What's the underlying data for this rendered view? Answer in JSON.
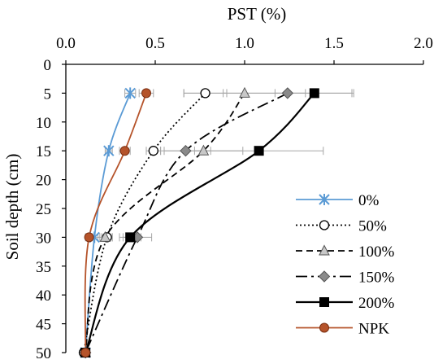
{
  "chart_data": {
    "type": "line",
    "xlabel": "PST (%)",
    "ylabel": "Soil depth (cm)",
    "x_axis_position": "top",
    "y_axis_reversed": true,
    "xlim": [
      0,
      2.0
    ],
    "ylim": [
      0,
      50
    ],
    "x_ticks": [
      "0.0",
      "0.5",
      "1.0",
      "1.5",
      "2.0"
    ],
    "y_ticks": [
      "0",
      "5",
      "10",
      "15",
      "20",
      "25",
      "30",
      "35",
      "40",
      "45",
      "50"
    ],
    "grid": false,
    "legend_position": "right",
    "series": [
      {
        "name": "0%",
        "color": "#5B9BD5",
        "dash": "",
        "marker": "asterisk",
        "x": [
          0.36,
          0.24,
          0.16,
          0.11
        ],
        "y": [
          5,
          15,
          30,
          50
        ],
        "error": [
          0.03,
          0.02,
          0.03,
          0
        ]
      },
      {
        "name": "50%",
        "color": "#000000",
        "dash": "2,3",
        "marker": "circle-open",
        "x": [
          0.78,
          0.49,
          0.23,
          0.1
        ],
        "y": [
          5,
          15,
          30,
          50
        ],
        "error": [
          0.12,
          0.04,
          0.03,
          0
        ]
      },
      {
        "name": "100%",
        "color": "#000000",
        "dash": "8,5",
        "marker": "triangle",
        "x": [
          1.0,
          0.77,
          0.22,
          0.11
        ],
        "y": [
          5,
          15,
          30,
          50
        ],
        "error": [
          0.34,
          0.22,
          0.04,
          0
        ]
      },
      {
        "name": "150%",
        "color": "#000000",
        "dash": "14,5,3,5",
        "marker": "diamond",
        "x": [
          1.24,
          0.67,
          0.4,
          0.11
        ],
        "y": [
          5,
          15,
          30,
          50
        ],
        "error": [
          0.36,
          0.14,
          0.08,
          0
        ]
      },
      {
        "name": "200%",
        "color": "#000000",
        "dash": "",
        "marker": "square",
        "x": [
          1.39,
          1.08,
          0.36,
          0.11
        ],
        "y": [
          5,
          15,
          30,
          50
        ],
        "error": [
          0.22,
          0.36,
          0.06,
          0
        ]
      },
      {
        "name": "NPK",
        "color": "#B5532A",
        "dash": "",
        "marker": "circle-filled",
        "x": [
          0.45,
          0.33,
          0.13,
          0.11
        ],
        "y": [
          5,
          15,
          30,
          50
        ],
        "error": [
          0.04,
          0.03,
          0.02,
          0
        ]
      }
    ]
  }
}
